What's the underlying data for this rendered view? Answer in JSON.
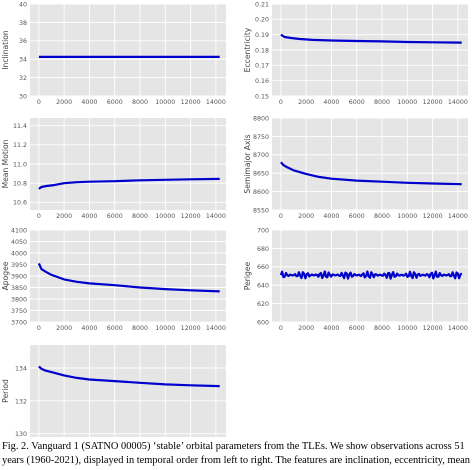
{
  "chart_data": [
    {
      "type": "line",
      "ylabel": "Inclination",
      "xticks": [
        "0",
        "2000",
        "4000",
        "6000",
        "8000",
        "10000",
        "12000",
        "14000"
      ],
      "yticks": [
        "30",
        "32",
        "34",
        "36",
        "38",
        "40"
      ],
      "ylim": [
        30,
        40
      ],
      "xlim": [
        -700,
        14800
      ],
      "grid": true,
      "color": "#0000cc",
      "x": [
        0,
        14300
      ],
      "y": [
        34.25,
        34.25
      ]
    },
    {
      "type": "line",
      "ylabel": "Eccentricity",
      "xticks": [
        "0",
        "2000",
        "4000",
        "6000",
        "8000",
        "10000",
        "12000",
        "14000"
      ],
      "yticks": [
        "0.15",
        "0.16",
        "0.17",
        "0.18",
        "0.19",
        "0.20",
        "0.21"
      ],
      "ylim": [
        0.15,
        0.21
      ],
      "xlim": [
        -700,
        14800
      ],
      "grid": true,
      "color": "#0000cc",
      "x": [
        0,
        300,
        800,
        1500,
        2500,
        4000,
        6000,
        8000,
        10000,
        12000,
        14300
      ],
      "y": [
        0.19,
        0.1885,
        0.1878,
        0.1872,
        0.1866,
        0.1862,
        0.1859,
        0.1856,
        0.1852,
        0.185,
        0.1848
      ]
    },
    {
      "type": "line",
      "ylabel": "Mean Motion",
      "xticks": [
        "0",
        "2000",
        "4000",
        "6000",
        "8000",
        "10000",
        "12000",
        "14000"
      ],
      "yticks": [
        "10.6",
        "10.8",
        "11.0",
        "11.2",
        "11.4"
      ],
      "ylim": [
        10.52,
        11.48
      ],
      "xlim": [
        -700,
        14800
      ],
      "grid": true,
      "color": "#0000cc",
      "x": [
        0,
        200,
        600,
        1200,
        2000,
        3000,
        4000,
        6000,
        8000,
        10000,
        12000,
        14300
      ],
      "y": [
        10.74,
        10.76,
        10.77,
        10.78,
        10.8,
        10.81,
        10.815,
        10.82,
        10.83,
        10.835,
        10.84,
        10.845
      ]
    },
    {
      "type": "line",
      "ylabel": "Semimajor Axis",
      "xticks": [
        "0",
        "2000",
        "4000",
        "6000",
        "8000",
        "10000",
        "12000",
        "14000"
      ],
      "yticks": [
        "8550",
        "8600",
        "8650",
        "8700",
        "8750",
        "8800"
      ],
      "ylim": [
        8550,
        8800
      ],
      "xlim": [
        -700,
        14800
      ],
      "grid": true,
      "color": "#0000cc",
      "x": [
        0,
        200,
        500,
        1000,
        2000,
        3000,
        4000,
        6000,
        8000,
        10000,
        12000,
        14300
      ],
      "y": [
        8680,
        8672,
        8666,
        8658,
        8648,
        8640,
        8635,
        8630,
        8627,
        8624,
        8622,
        8620
      ]
    },
    {
      "type": "line",
      "ylabel": "Apogee",
      "xticks": [
        "0",
        "2000",
        "4000",
        "6000",
        "8000",
        "10000",
        "12000",
        "14000"
      ],
      "yticks": [
        "3700",
        "3750",
        "3800",
        "3850",
        "3900",
        "3950",
        "4000",
        "4050",
        "4100"
      ],
      "ylim": [
        3700,
        4100
      ],
      "xlim": [
        -700,
        14800
      ],
      "grid": true,
      "color": "#0000cc",
      "x": [
        0,
        200,
        500,
        1000,
        2000,
        3000,
        4000,
        6000,
        8000,
        10000,
        12000,
        14300
      ],
      "y": [
        3955,
        3930,
        3920,
        3905,
        3885,
        3875,
        3868,
        3860,
        3850,
        3843,
        3838,
        3833
      ]
    },
    {
      "type": "line",
      "ylabel": "Perigee",
      "xticks": [
        "0",
        "2000",
        "4000",
        "6000",
        "8000",
        "10000",
        "12000",
        "14000"
      ],
      "yticks": [
        "600",
        "620",
        "640",
        "660",
        "680",
        "700"
      ],
      "ylim": [
        600,
        700
      ],
      "xlim": [
        -700,
        14800
      ],
      "grid": true,
      "color": "#0000cc",
      "x": [
        0,
        14300
      ],
      "y": [
        651,
        651
      ],
      "oscillation": 4
    },
    {
      "type": "line",
      "ylabel": "Period",
      "xticks": [
        "0",
        "2000",
        "4000",
        "6000",
        "8000",
        "10000",
        "12000",
        "14000"
      ],
      "yticks": [
        "130",
        "132",
        "134"
      ],
      "ylim": [
        129.8,
        135.4
      ],
      "xlim": [
        -700,
        14800
      ],
      "grid": true,
      "color": "#0000cc",
      "x": [
        0,
        200,
        500,
        1000,
        2000,
        3000,
        4000,
        6000,
        8000,
        10000,
        12000,
        14300
      ],
      "y": [
        134.1,
        133.95,
        133.85,
        133.75,
        133.55,
        133.4,
        133.3,
        133.2,
        133.1,
        133.0,
        132.95,
        132.9
      ]
    }
  ],
  "caption": {
    "lines": [
      "Fig. 2.  Vanguard 1 (SATNO 00005) ‘stable’ orbital parameters from the TLEs. We show observations across 51",
      "years (1960-2021), displayed in temporal order from left to right. The features are inclination, eccentricity, mean"
    ]
  }
}
